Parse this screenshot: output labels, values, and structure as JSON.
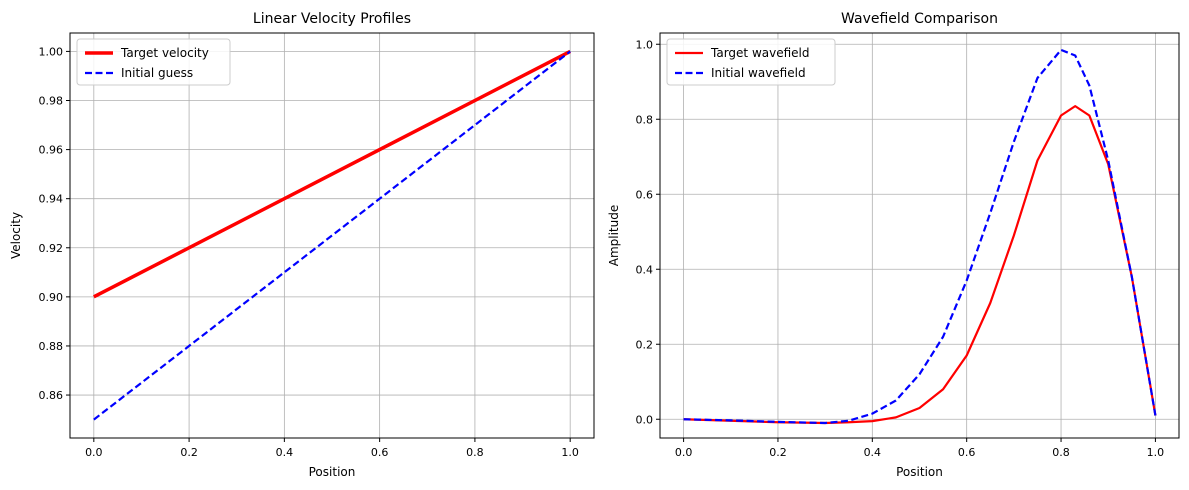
{
  "chart_data": [
    {
      "type": "line",
      "title": "Linear Velocity Profiles",
      "xlabel": "Position",
      "ylabel": "Velocity",
      "xlim": [
        -0.05,
        1.05
      ],
      "ylim": [
        0.8425,
        1.0075
      ],
      "xticks": [
        0.0,
        0.2,
        0.4,
        0.6,
        0.8,
        1.0
      ],
      "xtick_labels": [
        "0.0",
        "0.2",
        "0.4",
        "0.6",
        "0.8",
        "1.0"
      ],
      "yticks": [
        0.86,
        0.88,
        0.9,
        0.92,
        0.94,
        0.96,
        0.98,
        1.0
      ],
      "ytick_labels": [
        "0.86",
        "0.88",
        "0.90",
        "0.92",
        "0.94",
        "0.96",
        "0.98",
        "1.00"
      ],
      "grid": true,
      "legend_position": "top-left",
      "series": [
        {
          "name": "Target velocity",
          "color": "#ff0000",
          "style": "solid",
          "width": "thick",
          "x": [
            0.0,
            1.0
          ],
          "y": [
            0.9,
            1.0
          ]
        },
        {
          "name": "Initial guess",
          "color": "#0000ff",
          "style": "dashed",
          "width": "normal",
          "x": [
            0.0,
            1.0
          ],
          "y": [
            0.85,
            1.0
          ]
        }
      ]
    },
    {
      "type": "line",
      "title": "Wavefield Comparison",
      "xlabel": "Position",
      "ylabel": "Amplitude",
      "xlim": [
        -0.05,
        1.05
      ],
      "ylim": [
        -0.05,
        1.03
      ],
      "xticks": [
        0.0,
        0.2,
        0.4,
        0.6,
        0.8,
        1.0
      ],
      "xtick_labels": [
        "0.0",
        "0.2",
        "0.4",
        "0.6",
        "0.8",
        "1.0"
      ],
      "yticks": [
        0.0,
        0.2,
        0.4,
        0.6,
        0.8,
        1.0
      ],
      "ytick_labels": [
        "0.0",
        "0.2",
        "0.4",
        "0.6",
        "0.8",
        "1.0"
      ],
      "grid": true,
      "legend_position": "top-left",
      "series": [
        {
          "name": "Target wavefield",
          "color": "#ff0000",
          "style": "solid",
          "width": "normal",
          "x": [
            0.0,
            0.1,
            0.2,
            0.3,
            0.35,
            0.4,
            0.45,
            0.5,
            0.55,
            0.6,
            0.65,
            0.7,
            0.75,
            0.8,
            0.83,
            0.86,
            0.9,
            0.95,
            1.0
          ],
          "y": [
            0.0,
            -0.004,
            -0.008,
            -0.01,
            -0.008,
            -0.005,
            0.005,
            0.03,
            0.08,
            0.17,
            0.31,
            0.49,
            0.69,
            0.81,
            0.835,
            0.81,
            0.68,
            0.38,
            0.01
          ]
        },
        {
          "name": "Initial wavefield",
          "color": "#0000ff",
          "style": "dashed",
          "width": "normal",
          "x": [
            0.0,
            0.1,
            0.2,
            0.3,
            0.35,
            0.4,
            0.45,
            0.5,
            0.55,
            0.6,
            0.65,
            0.7,
            0.75,
            0.8,
            0.83,
            0.86,
            0.9,
            0.95,
            1.0
          ],
          "y": [
            0.0,
            -0.003,
            -0.007,
            -0.01,
            -0.004,
            0.015,
            0.05,
            0.12,
            0.22,
            0.37,
            0.55,
            0.74,
            0.91,
            0.985,
            0.97,
            0.89,
            0.69,
            0.38,
            0.01
          ]
        }
      ]
    }
  ]
}
